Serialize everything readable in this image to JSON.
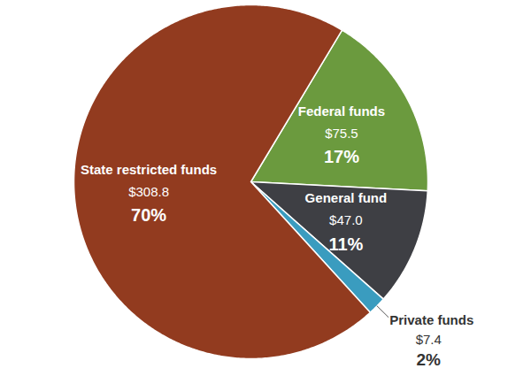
{
  "chart_data": {
    "type": "pie",
    "categories": [
      "Federal funds",
      "General fund",
      "Private funds",
      "State restricted funds"
    ],
    "values": [
      75.5,
      47.0,
      7.4,
      308.8
    ],
    "value_labels": [
      "$75.5",
      "$47.0",
      "$7.4",
      "$308.8"
    ],
    "percentages": [
      17,
      11,
      2,
      70
    ],
    "percentage_labels": [
      "17%",
      "11%",
      "2%",
      "70%"
    ],
    "colors": [
      "#6b9a3e",
      "#3e3f44",
      "#3a9cbf",
      "#923b1f"
    ],
    "data_labels": true
  }
}
